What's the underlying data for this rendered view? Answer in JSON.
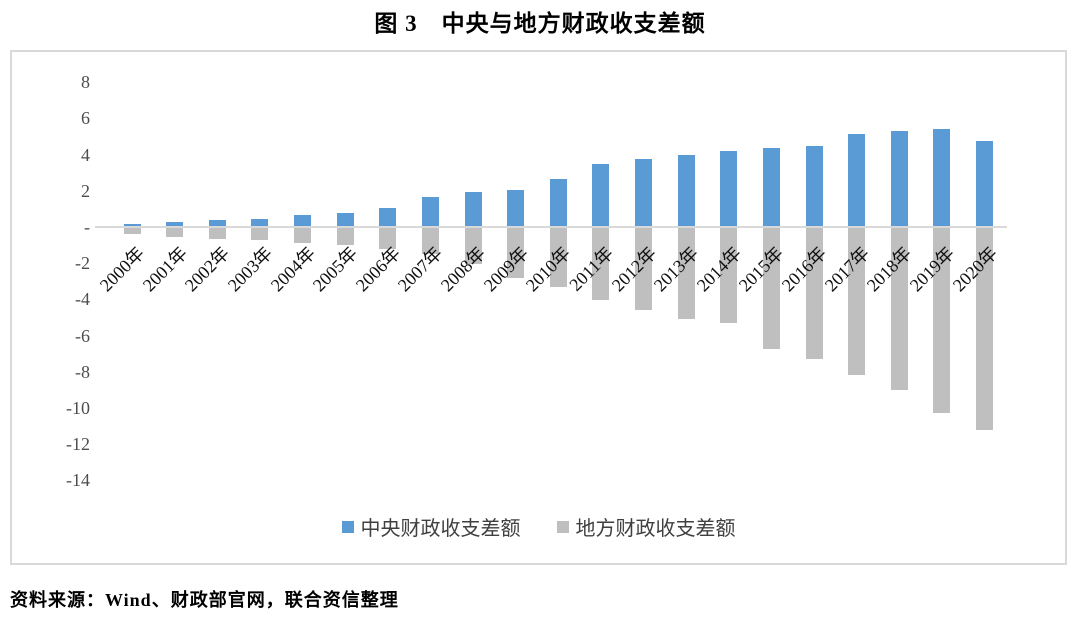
{
  "chart_data": {
    "type": "bar",
    "title": "图 3　中央与地方财政收支差额",
    "categories": [
      "2000年",
      "2001年",
      "2002年",
      "2003年",
      "2004年",
      "2005年",
      "2006年",
      "2007年",
      "2008年",
      "2009年",
      "2010年",
      "2011年",
      "2012年",
      "2013年",
      "2014年",
      "2015年",
      "2016年",
      "2017年",
      "2018年",
      "2019年",
      "2020年"
    ],
    "series": [
      {
        "name": "中央财政收支差额",
        "color": "#5b9bd5",
        "values": [
          0.15,
          0.28,
          0.36,
          0.44,
          0.66,
          0.78,
          1.05,
          1.63,
          1.94,
          2.06,
          2.65,
          3.48,
          3.74,
          3.97,
          4.19,
          4.37,
          4.5,
          5.12,
          5.33,
          5.42,
          4.77
        ]
      },
      {
        "name": "地方财政收支差额",
        "color": "#bfbfbf",
        "values": [
          -0.4,
          -0.53,
          -0.68,
          -0.74,
          -0.87,
          -1.0,
          -1.21,
          -1.48,
          -2.07,
          -2.84,
          -3.33,
          -4.02,
          -4.61,
          -5.07,
          -5.33,
          -6.73,
          -7.31,
          -8.17,
          -9.03,
          -10.26,
          -11.24
        ]
      }
    ],
    "xlabel": "",
    "ylabel": "",
    "ylim": [
      -14,
      8
    ],
    "y_ticks": [
      {
        "label": "8",
        "value": 8
      },
      {
        "label": "6",
        "value": 6
      },
      {
        "label": "4",
        "value": 4
      },
      {
        "label": "2",
        "value": 2
      },
      {
        "label": "-",
        "value": 0
      },
      {
        "label": "-2",
        "value": -2
      },
      {
        "label": "-4",
        "value": -4
      },
      {
        "label": "-6",
        "value": -6
      },
      {
        "label": "-8",
        "value": -8
      },
      {
        "label": "-10",
        "value": -10
      },
      {
        "label": "-12",
        "value": -12
      },
      {
        "label": "-14",
        "value": -14
      }
    ],
    "grid": false,
    "legend_position": "bottom",
    "zero_line_color": "#d9d9d9",
    "frame_border_color": "#d9d9d9",
    "tick_label_color": "#4d4d4d",
    "source": "资料来源：Wind、财政部官网，联合资信整理"
  }
}
